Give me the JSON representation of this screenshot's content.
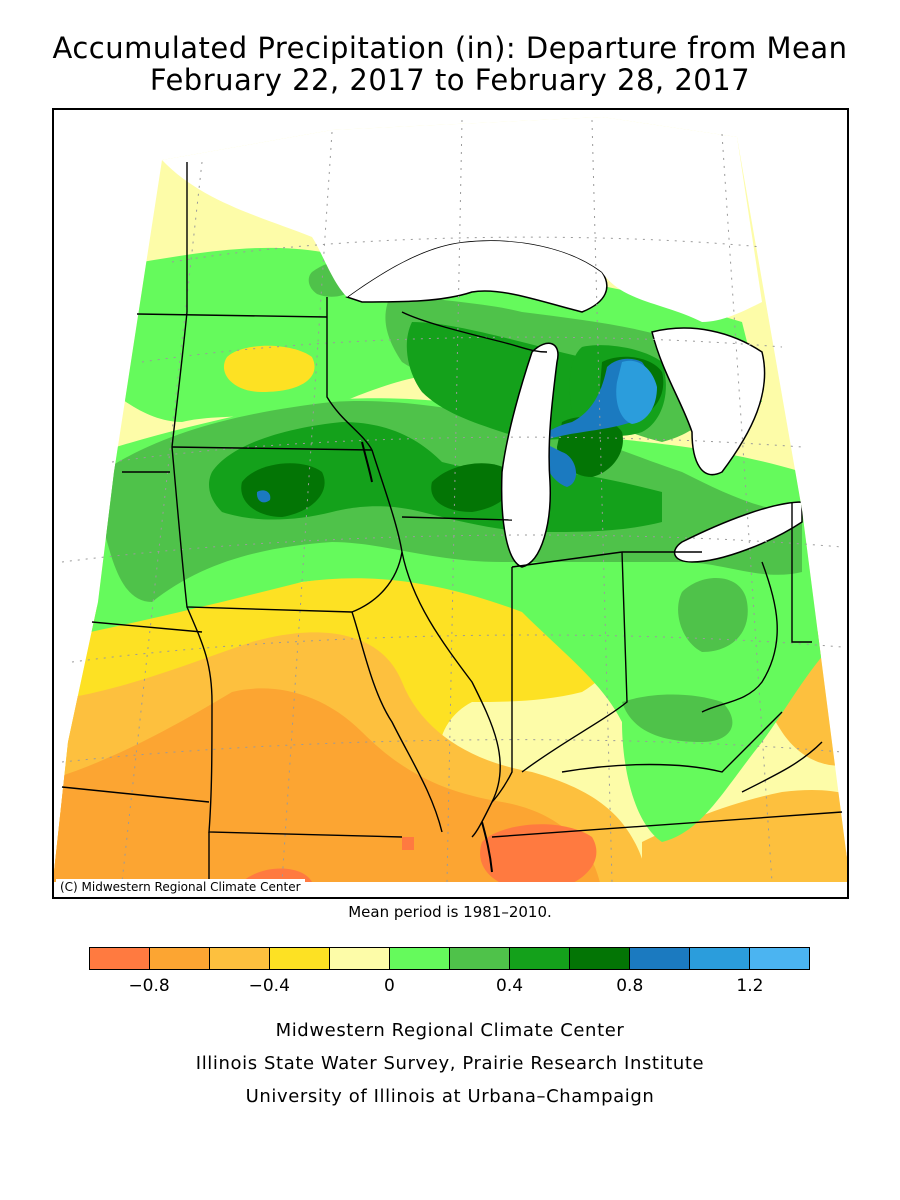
{
  "title": {
    "line1": "Accumulated Precipitation (in): Departure from Mean",
    "line2": "February 22, 2017 to February 28, 2017"
  },
  "map": {
    "copyright": "(C) Midwestern Regional Climate Center",
    "colors": {
      "lake": "#ffffff",
      "border": "#000000",
      "grid": "#9a9a9a"
    }
  },
  "mean_period": "Mean period is 1981–2010.",
  "legend": {
    "bins": [
      {
        "color": "#ff7a40"
      },
      {
        "color": "#fca532"
      },
      {
        "color": "#fdc03e"
      },
      {
        "color": "#fde123"
      },
      {
        "color": "#fdfca8"
      },
      {
        "color": "#65fa5c"
      },
      {
        "color": "#4fc24a"
      },
      {
        "color": "#14a11b"
      },
      {
        "color": "#037505"
      },
      {
        "color": "#1b7ac0"
      },
      {
        "color": "#2b9ddc"
      },
      {
        "color": "#4bb4f1"
      }
    ],
    "tick_labels": [
      {
        "label": "−0.8",
        "bin_edge": 1
      },
      {
        "label": "−0.4",
        "bin_edge": 3
      },
      {
        "label": "0",
        "bin_edge": 5
      },
      {
        "label": "0.4",
        "bin_edge": 7
      },
      {
        "label": "0.8",
        "bin_edge": 9
      },
      {
        "label": "1.2",
        "bin_edge": 11
      }
    ]
  },
  "credits": [
    "Midwestern Regional Climate Center",
    "Illinois State Water Survey, Prairie Research Institute",
    "University of Illinois at Urbana–Champaign"
  ]
}
